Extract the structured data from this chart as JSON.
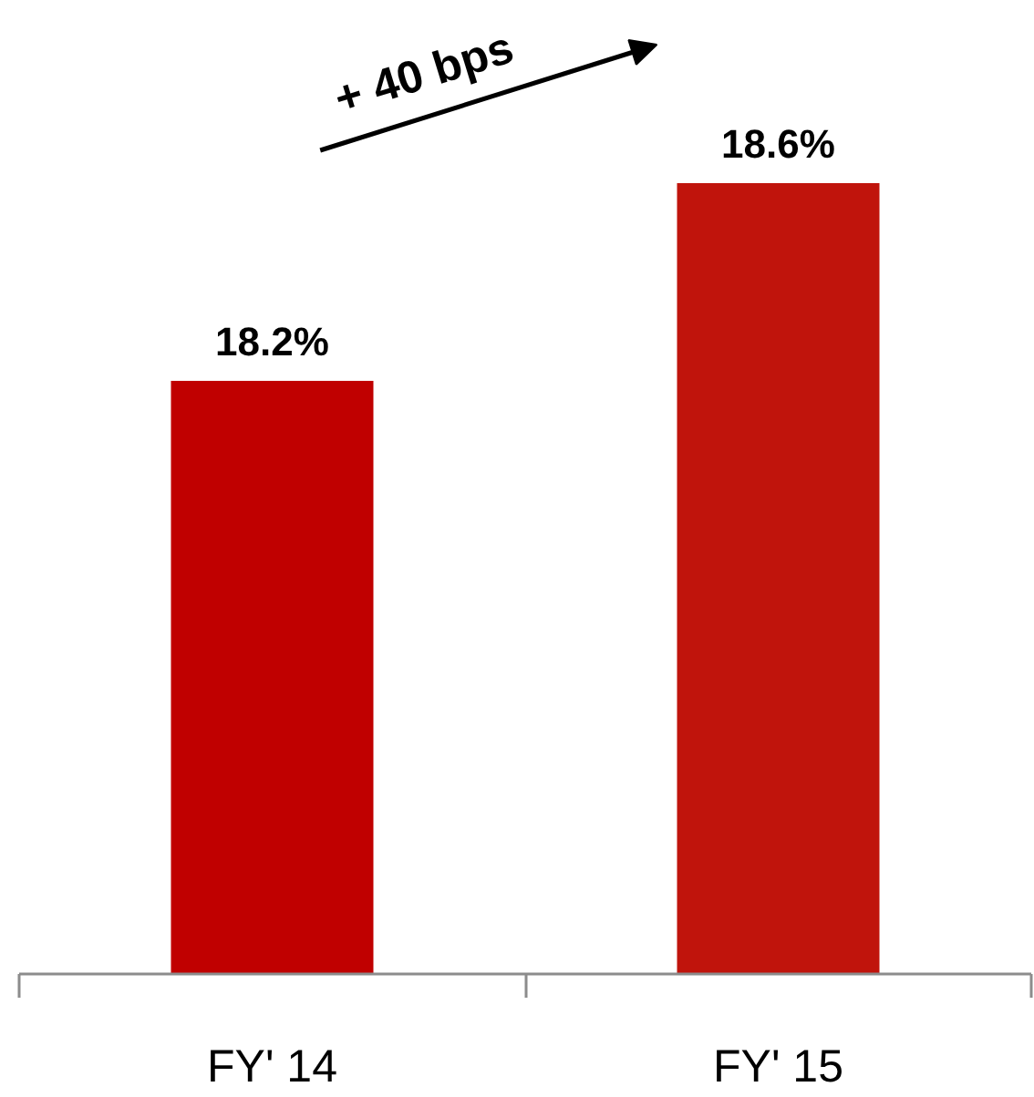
{
  "chart_data": {
    "type": "bar",
    "categories": [
      "FY' 14",
      "FY' 15"
    ],
    "values": [
      18.2,
      18.6
    ],
    "colors": [
      "#c00000",
      "#c0140c"
    ],
    "value_labels": [
      "18.2%",
      "18.6%"
    ],
    "ylim": [
      17,
      18.6
    ],
    "tick_labels": "x",
    "annotations": [
      "+ 40 bps"
    ]
  }
}
